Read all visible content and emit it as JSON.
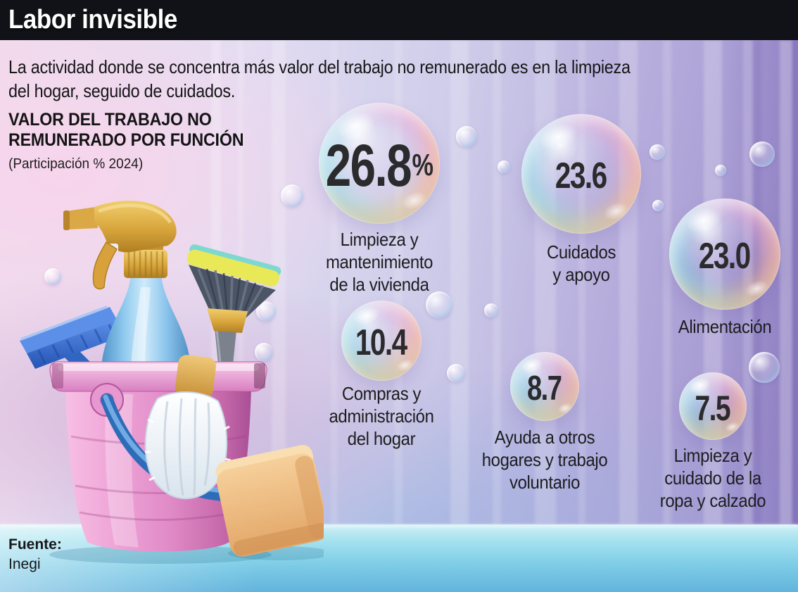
{
  "header": {
    "title": "Labor invisible"
  },
  "intro": "La actividad donde se concentra más valor del trabajo no remunerado es en la limpieza\ndel hogar, seguido de cuidados.",
  "section": {
    "heading": "VALOR DEL TRABAJO NO\nREMUNERADO POR FUNCIÓN",
    "subheading": "(Participación % 2024)"
  },
  "bubbles": [
    {
      "value": "26.8",
      "suffix": "%",
      "label": "Limpieza y\nmantenimiento\nde la vivienda"
    },
    {
      "value": "23.6",
      "suffix": "",
      "label": "Cuidados\ny apoyo"
    },
    {
      "value": "23.0",
      "suffix": "",
      "label": "Alimentación"
    },
    {
      "value": "10.4",
      "suffix": "",
      "label": "Compras y\nadministración\ndel hogar"
    },
    {
      "value": "8.7",
      "suffix": "",
      "label": "Ayuda a otros\nhogares y trabajo\nvoluntario"
    },
    {
      "value": "7.5",
      "suffix": "",
      "label": "Limpieza y\ncuidado de la\nropa y calzado"
    }
  ],
  "source": {
    "label": "Fuente:",
    "name": "Inegi"
  },
  "illustration": {
    "description": "Pink bucket with blue spray bottle, blue scrub brush, round brush, white duster and sponge"
  },
  "colors": {
    "header_bg": "#111217",
    "text": "#1d1d1f",
    "wall_pink": "#f0dded",
    "wall_purple": "#9a8cca",
    "floor_teal": "#7ccbe6",
    "bucket_pink": "#e18cc8",
    "accent_gold": "#d8a53c",
    "bottle_blue": "#8ec9ee"
  },
  "chart_data": {
    "type": "pie",
    "variant": "bubble-infographic",
    "title": "VALOR DEL TRABAJO NO REMUNERADO POR FUNCIÓN",
    "subtitle": "(Participación % 2024)",
    "unit": "%",
    "categories": [
      "Limpieza y mantenimiento de la vivienda",
      "Cuidados y apoyo",
      "Alimentación",
      "Compras y administración del hogar",
      "Ayuda a otros hogares y trabajo voluntario",
      "Limpieza y cuidado de la ropa y calzado"
    ],
    "values": [
      26.8,
      23.6,
      23.0,
      10.4,
      8.7,
      7.5
    ],
    "source": "Inegi"
  }
}
